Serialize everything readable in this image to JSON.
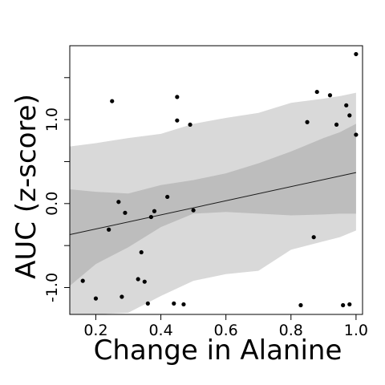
{
  "chart_data": {
    "type": "scatter",
    "title": "",
    "xlabel": "Change in Alanine",
    "ylabel": "AUC (z-score)",
    "xlim": [
      0.12,
      1.02
    ],
    "ylim": [
      -1.32,
      1.88
    ],
    "xticks": [
      0.2,
      0.4,
      0.6,
      0.8,
      1.0
    ],
    "xtick_labels": [
      "0.2",
      "0.4",
      "0.6",
      "0.8",
      "1.0"
    ],
    "yticks": [
      -1.0,
      -0.5,
      0.0,
      0.5,
      1.0,
      1.5
    ],
    "ytick_labels": [
      "-1.0",
      "",
      "0.0",
      "",
      "1.0",
      ""
    ],
    "grid": false,
    "legend": "none",
    "colors": {
      "outer_band": "#d9d9d9",
      "inner_band": "#bdbdbd",
      "line": "#1a1a1a",
      "points": "#000000",
      "frame": "#000000"
    },
    "trend_line": {
      "x": [
        0.12,
        1.0
      ],
      "y": [
        -0.37,
        0.37
      ]
    },
    "outer_band": {
      "x": [
        0.12,
        0.2,
        0.3,
        0.4,
        0.5,
        0.6,
        0.7,
        0.8,
        0.9,
        0.95,
        1.0
      ],
      "upper": [
        0.68,
        0.72,
        0.78,
        0.83,
        0.95,
        1.02,
        1.08,
        1.2,
        1.25,
        1.28,
        1.32
      ],
      "lower": [
        -1.32,
        -1.32,
        -1.3,
        -1.1,
        -0.92,
        -0.84,
        -0.8,
        -0.55,
        -0.45,
        -0.4,
        -0.32
      ]
    },
    "inner_band": {
      "x": [
        0.12,
        0.2,
        0.3,
        0.4,
        0.5,
        0.6,
        0.7,
        0.8,
        0.9,
        0.95,
        1.0
      ],
      "upper": [
        0.17,
        0.14,
        0.12,
        0.22,
        0.28,
        0.36,
        0.48,
        0.62,
        0.78,
        0.85,
        0.95
      ],
      "lower": [
        -0.98,
        -0.72,
        -0.52,
        -0.28,
        -0.12,
        -0.1,
        -0.12,
        -0.14,
        -0.13,
        -0.12,
        -0.12
      ]
    },
    "points": [
      {
        "x": 0.16,
        "y": -0.92
      },
      {
        "x": 0.2,
        "y": -1.13
      },
      {
        "x": 0.24,
        "y": -0.31
      },
      {
        "x": 0.25,
        "y": 1.22
      },
      {
        "x": 0.27,
        "y": 0.02
      },
      {
        "x": 0.28,
        "y": -1.11
      },
      {
        "x": 0.29,
        "y": -0.11
      },
      {
        "x": 0.33,
        "y": -0.9
      },
      {
        "x": 0.34,
        "y": -0.58
      },
      {
        "x": 0.35,
        "y": -0.93
      },
      {
        "x": 0.36,
        "y": -1.19
      },
      {
        "x": 0.37,
        "y": -0.16
      },
      {
        "x": 0.38,
        "y": -0.09
      },
      {
        "x": 0.42,
        "y": 0.08
      },
      {
        "x": 0.44,
        "y": -1.19
      },
      {
        "x": 0.45,
        "y": 1.27
      },
      {
        "x": 0.45,
        "y": 0.99
      },
      {
        "x": 0.47,
        "y": -1.2
      },
      {
        "x": 0.49,
        "y": 0.94
      },
      {
        "x": 0.5,
        "y": -0.08
      },
      {
        "x": 0.83,
        "y": -1.21
      },
      {
        "x": 0.85,
        "y": 0.97
      },
      {
        "x": 0.87,
        "y": -0.4
      },
      {
        "x": 0.88,
        "y": 1.33
      },
      {
        "x": 0.92,
        "y": 1.29
      },
      {
        "x": 0.94,
        "y": 0.94
      },
      {
        "x": 0.96,
        "y": -1.21
      },
      {
        "x": 0.97,
        "y": 1.17
      },
      {
        "x": 0.98,
        "y": -1.2
      },
      {
        "x": 0.98,
        "y": 1.05
      },
      {
        "x": 1.0,
        "y": 0.82
      },
      {
        "x": 1.0,
        "y": 1.78
      }
    ]
  }
}
